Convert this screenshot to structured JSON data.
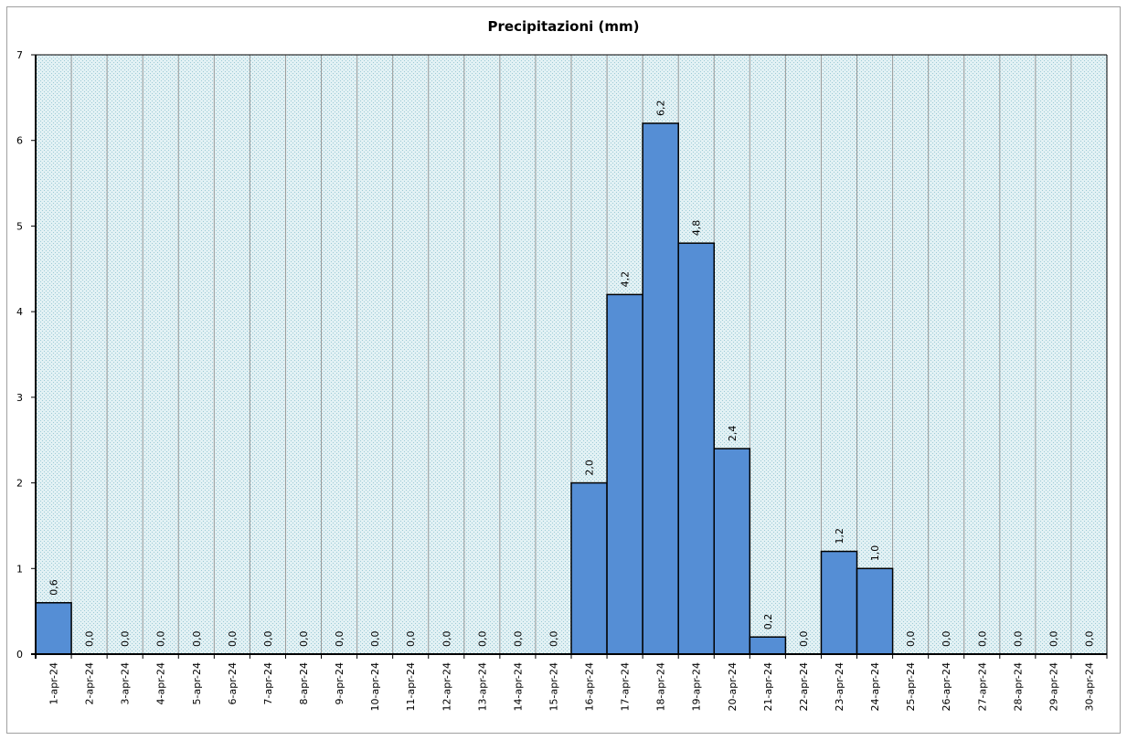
{
  "chart_data": {
    "type": "bar",
    "title": "Precipitazioni  (mm)",
    "xlabel": "",
    "ylabel": "",
    "ylim": [
      0,
      7
    ],
    "yticks": [
      "0",
      "1",
      "2",
      "3",
      "4",
      "5",
      "6",
      "7"
    ],
    "categories": [
      "1-apr-24",
      "2-apr-24",
      "3-apr-24",
      "4-apr-24",
      "5-apr-24",
      "6-apr-24",
      "7-apr-24",
      "8-apr-24",
      "9-apr-24",
      "10-apr-24",
      "11-apr-24",
      "12-apr-24",
      "13-apr-24",
      "14-apr-24",
      "15-apr-24",
      "16-apr-24",
      "17-apr-24",
      "18-apr-24",
      "19-apr-24",
      "20-apr-24",
      "21-apr-24",
      "22-apr-24",
      "23-apr-24",
      "24-apr-24",
      "25-apr-24",
      "26-apr-24",
      "27-apr-24",
      "28-apr-24",
      "29-apr-24",
      "30-apr-24"
    ],
    "values": [
      0.6,
      0,
      0,
      0,
      0,
      0,
      0,
      0,
      0,
      0,
      0,
      0,
      0,
      0,
      0,
      2.0,
      4.2,
      6.2,
      4.8,
      2.4,
      0.2,
      0,
      1.2,
      1.0,
      0,
      0,
      0,
      0,
      0,
      0
    ],
    "data_labels": [
      "0,6",
      "0,0",
      "0,0",
      "0,0",
      "0,0",
      "0,0",
      "0,0",
      "0,0",
      "0,0",
      "0,0",
      "0,0",
      "0,0",
      "0,0",
      "0,0",
      "0,0",
      "2,0",
      "4,2",
      "6,2",
      "4,8",
      "2,4",
      "0,2",
      "0,0",
      "1,2",
      "1,0",
      "0,0",
      "0,0",
      "0,0",
      "0,0",
      "0,0",
      "0,0"
    ],
    "grid": true,
    "legend": "none",
    "colors": {
      "bar_fill": "#558ed5",
      "bar_stroke": "#000000",
      "plot_background": "#dbeef3",
      "gridline": "#999999"
    }
  }
}
